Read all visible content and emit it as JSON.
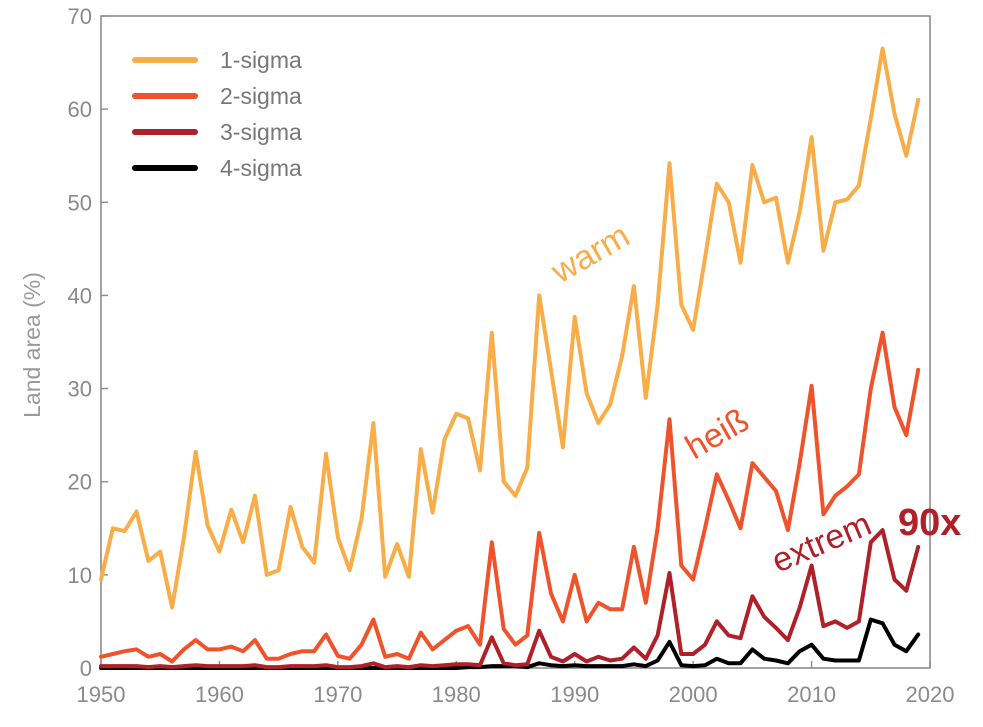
{
  "chart_data": {
    "type": "line",
    "ylabel": "Land area (%)",
    "xlim": [
      1950,
      2020
    ],
    "ylim": [
      0,
      70
    ],
    "xticks": [
      "1950",
      "1960",
      "1970",
      "1980",
      "1990",
      "2000",
      "2010",
      "2020"
    ],
    "yticks": [
      "0",
      "10",
      "20",
      "30",
      "40",
      "50",
      "60",
      "70"
    ],
    "grid": false,
    "legend": "top-left",
    "x": [
      1950,
      1951,
      1952,
      1953,
      1954,
      1955,
      1956,
      1957,
      1958,
      1959,
      1960,
      1961,
      1962,
      1963,
      1964,
      1965,
      1966,
      1967,
      1968,
      1969,
      1970,
      1971,
      1972,
      1973,
      1974,
      1975,
      1976,
      1977,
      1978,
      1979,
      1980,
      1981,
      1982,
      1983,
      1984,
      1985,
      1986,
      1987,
      1988,
      1989,
      1990,
      1991,
      1992,
      1993,
      1994,
      1995,
      1996,
      1997,
      1998,
      1999,
      2000,
      2001,
      2002,
      2003,
      2004,
      2005,
      2006,
      2007,
      2008,
      2009,
      2010,
      2011,
      2012,
      2013,
      2014,
      2015,
      2016,
      2017,
      2018,
      2019
    ],
    "series": [
      {
        "name": "1-sigma",
        "color": "#f9ad48",
        "values": [
          9.5,
          15,
          14.7,
          16.8,
          11.5,
          12.5,
          6.5,
          14,
          23.2,
          15.3,
          12.5,
          17,
          13.5,
          18.5,
          10,
          10.5,
          17.3,
          13,
          11.3,
          23,
          14,
          10.5,
          16,
          26.3,
          9.8,
          13.3,
          9.8,
          23.5,
          16.7,
          24.5,
          27.3,
          26.8,
          21.2,
          36,
          20,
          18.5,
          21.5,
          40,
          32,
          23.7,
          37.7,
          29.5,
          26.3,
          28.3,
          33.5,
          41,
          29,
          39,
          54.2,
          39,
          36.3,
          44,
          52,
          50,
          43.5,
          54,
          50,
          50.5,
          43.5,
          49,
          57,
          44.8,
          50,
          50.3,
          51.8,
          59,
          66.5,
          59.5,
          55,
          61
        ]
      },
      {
        "name": "2-sigma",
        "color": "#f0532b",
        "values": [
          1.2,
          1.5,
          1.8,
          2,
          1.2,
          1.5,
          0.7,
          2,
          3,
          2,
          2,
          2.3,
          1.8,
          3,
          1,
          1,
          1.5,
          1.8,
          1.8,
          3.6,
          1.3,
          1,
          2.5,
          5.2,
          1.2,
          1.5,
          1,
          3.8,
          2,
          3,
          4,
          4.5,
          2.5,
          13.5,
          4.2,
          2.5,
          3.5,
          14.5,
          8,
          5,
          10,
          5,
          7,
          6.3,
          6.3,
          13,
          7,
          15,
          26.7,
          11,
          9.5,
          15,
          20.8,
          18,
          15,
          22,
          20.5,
          19,
          14.8,
          22,
          30.3,
          16.5,
          18.5,
          19.5,
          20.8,
          30,
          36,
          28,
          25,
          32
        ]
      },
      {
        "name": "3-sigma",
        "color": "#b02029",
        "values": [
          0.2,
          0.2,
          0.2,
          0.2,
          0.1,
          0.2,
          0.1,
          0.2,
          0.3,
          0.2,
          0.2,
          0.2,
          0.2,
          0.3,
          0.1,
          0.1,
          0.2,
          0.2,
          0.2,
          0.3,
          0.1,
          0.1,
          0.2,
          0.5,
          0.1,
          0.2,
          0.1,
          0.3,
          0.2,
          0.3,
          0.4,
          0.4,
          0.3,
          3.3,
          0.5,
          0.3,
          0.4,
          4,
          1.2,
          0.7,
          1.5,
          0.7,
          1.2,
          0.8,
          1,
          2.2,
          1,
          3.5,
          10.2,
          1.5,
          1.5,
          2.5,
          5,
          3.5,
          3.2,
          7.7,
          5.5,
          4.3,
          3,
          6.5,
          11,
          4.5,
          5,
          4.3,
          5,
          13.5,
          14.8,
          9.5,
          8.3,
          13
        ]
      },
      {
        "name": "4-sigma",
        "color": "#000000",
        "values": [
          0,
          0,
          0,
          0,
          0,
          0,
          0,
          0,
          0,
          0,
          0,
          0,
          0,
          0,
          0,
          0,
          0,
          0,
          0,
          0,
          0,
          0,
          0,
          0,
          0,
          0,
          0,
          0,
          0,
          0,
          0,
          0.1,
          0.1,
          0.2,
          0.2,
          0.2,
          0.1,
          0.5,
          0.3,
          0.2,
          0.3,
          0.2,
          0.2,
          0.2,
          0.2,
          0.4,
          0.2,
          0.8,
          2.8,
          0.3,
          0.2,
          0.3,
          1,
          0.5,
          0.5,
          2,
          1,
          0.8,
          0.5,
          1.8,
          2.5,
          1,
          0.8,
          0.8,
          0.8,
          5.2,
          4.8,
          2.5,
          1.8,
          3.6
        ]
      }
    ],
    "annotations": [
      {
        "text": "warm",
        "color": "#f9ad48"
      },
      {
        "text": "heiß",
        "color": "#f0532b"
      },
      {
        "text": "extrem",
        "color": "#b02029"
      },
      {
        "text": "90x",
        "color": "#b02029"
      }
    ]
  }
}
